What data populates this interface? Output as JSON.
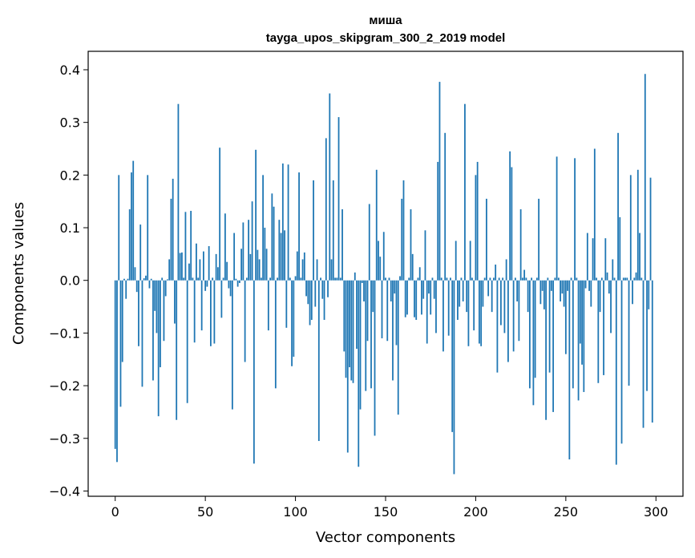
{
  "chart_data": {
    "type": "bar",
    "title": "миша",
    "subtitle": "tayga_upos_skipgram_300_2_2019 model",
    "xlabel": "Vector components",
    "ylabel": "Components values",
    "xlim": [
      -15,
      315
    ],
    "ylim": [
      -0.41,
      0.435
    ],
    "xticks": [
      0,
      50,
      100,
      150,
      200,
      250,
      300
    ],
    "xtick_labels": [
      "0",
      "50",
      "100",
      "150",
      "200",
      "250",
      "300"
    ],
    "yticks": [
      0.4,
      0.3,
      0.2,
      0.1,
      0.0,
      -0.1,
      -0.2,
      -0.3,
      -0.4
    ],
    "ytick_labels": [
      "0.4",
      "0.3",
      "0.2",
      "0.1",
      "0.0",
      "−0.1",
      "−0.2",
      "−0.3",
      "−0.4"
    ],
    "grid": false,
    "bar_color": "#1f77b4",
    "values": [
      -0.32,
      -0.345,
      0.2,
      -0.24,
      -0.155,
      0.003,
      -0.035,
      0.003,
      0.135,
      0.205,
      0.227,
      0.025,
      -0.022,
      -0.125,
      0.106,
      -0.202,
      0.004,
      0.009,
      0.2,
      -0.015,
      0.003,
      -0.19,
      -0.058,
      -0.1,
      -0.258,
      -0.165,
      0.005,
      -0.115,
      -0.03,
      0.002,
      0.04,
      0.155,
      0.193,
      -0.082,
      -0.265,
      0.335,
      0.052,
      0.053,
      0.005,
      0.13,
      -0.233,
      0.032,
      0.132,
      0.005,
      -0.118,
      0.07,
      0.005,
      0.04,
      -0.095,
      0.055,
      -0.02,
      -0.012,
      0.065,
      -0.125,
      0.005,
      -0.12,
      0.05,
      0.025,
      0.252,
      -0.071,
      0.005,
      0.127,
      0.035,
      -0.015,
      -0.03,
      -0.245,
      0.09,
      0.003,
      -0.012,
      -0.005,
      0.06,
      0.11,
      -0.155,
      0.005,
      0.115,
      0.05,
      0.15,
      -0.348,
      0.248,
      0.058,
      0.04,
      0.005,
      0.2,
      0.1,
      0.06,
      -0.095,
      0.005,
      0.165,
      0.14,
      -0.205,
      0.005,
      0.115,
      0.09,
      0.222,
      0.095,
      -0.09,
      0.22,
      0.005,
      -0.163,
      -0.145,
      0.008,
      0.055,
      0.205,
      0.005,
      0.04,
      0.053,
      -0.03,
      -0.045,
      -0.085,
      -0.075,
      0.19,
      -0.05,
      0.04,
      -0.305,
      0.005,
      -0.035,
      -0.075,
      0.27,
      -0.032,
      0.355,
      0.04,
      0.19,
      0.005,
      0.005,
      0.31,
      0.005,
      0.135,
      -0.135,
      -0.185,
      -0.327,
      -0.165,
      -0.19,
      -0.195,
      0.015,
      -0.13,
      -0.354,
      -0.245,
      -0.005,
      -0.04,
      -0.21,
      -0.115,
      0.145,
      -0.205,
      -0.06,
      -0.295,
      0.21,
      0.075,
      0.045,
      -0.11,
      0.092,
      0.005,
      -0.115,
      0.005,
      -0.04,
      -0.19,
      -0.025,
      -0.123,
      -0.255,
      0.008,
      0.155,
      0.19,
      -0.07,
      -0.065,
      0.005,
      0.135,
      0.05,
      -0.07,
      -0.075,
      0.005,
      0.025,
      -0.065,
      -0.035,
      0.095,
      -0.12,
      -0.025,
      -0.065,
      0.005,
      -0.035,
      -0.1,
      0.225,
      0.377,
      0.005,
      -0.135,
      0.28,
      0.005,
      -0.105,
      0.005,
      -0.288,
      -0.368,
      0.075,
      -0.075,
      -0.05,
      0.005,
      -0.04,
      0.335,
      -0.06,
      -0.125,
      0.075,
      0.005,
      -0.095,
      0.2,
      0.225,
      -0.12,
      -0.125,
      -0.05,
      0.005,
      0.155,
      -0.03,
      0.005,
      -0.06,
      0.005,
      0.03,
      -0.175,
      0.005,
      -0.085,
      0.005,
      -0.1,
      0.04,
      -0.155,
      0.245,
      0.215,
      -0.135,
      0.005,
      -0.04,
      -0.115,
      0.135,
      0.005,
      0.02,
      0.005,
      -0.06,
      -0.205,
      0.005,
      -0.237,
      -0.185,
      0.005,
      0.155,
      -0.045,
      -0.02,
      -0.055,
      -0.265,
      0.005,
      -0.175,
      -0.02,
      -0.25,
      0.005,
      0.235,
      0.005,
      -0.04,
      -0.025,
      -0.05,
      -0.14,
      -0.02,
      -0.34,
      0.005,
      -0.205,
      0.232,
      0.005,
      -0.228,
      -0.12,
      -0.16,
      -0.212,
      -0.015,
      0.09,
      -0.02,
      -0.05,
      0.08,
      0.25,
      0.005,
      -0.195,
      -0.06,
      0.005,
      -0.18,
      0.08,
      0.015,
      -0.025,
      -0.1,
      0.04,
      0.005,
      -0.35,
      0.28,
      0.12,
      -0.31,
      0.005,
      0.005,
      0.005,
      -0.2,
      0.2,
      -0.045,
      0.005,
      0.015,
      0.21,
      0.09,
      0.005,
      -0.28,
      0.392,
      -0.21,
      -0.055,
      0.195,
      -0.27
    ]
  }
}
